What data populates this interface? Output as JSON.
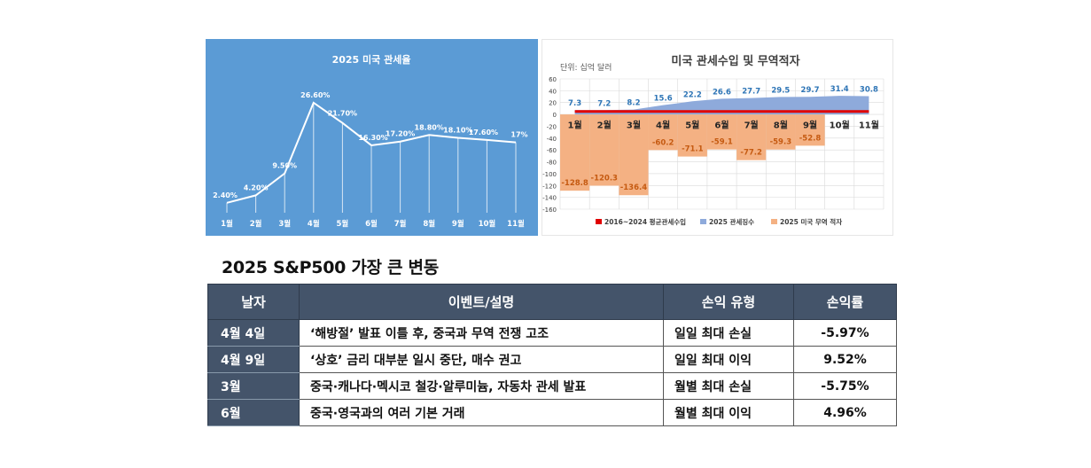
{
  "chart_data": [
    {
      "type": "line",
      "title": "2025 미국 관세율",
      "categories": [
        "1월",
        "2월",
        "3월",
        "4월",
        "5월",
        "6월",
        "7월",
        "8월",
        "9월",
        "10월",
        "11월"
      ],
      "values": [
        2.4,
        4.2,
        9.5,
        26.6,
        21.7,
        16.3,
        17.2,
        18.8,
        18.1,
        17.6,
        17
      ],
      "data_labels": [
        "2.40%",
        "4.20%",
        "9.50%",
        "26.60%",
        "21.70%",
        "16.30%",
        "17.20%",
        "18.80%",
        "18.10%",
        "17.60%",
        "17%"
      ],
      "ylim": [
        0,
        30
      ],
      "grid": false,
      "colors": {
        "background": "#5b9bd5",
        "line": "#ffffff"
      }
    },
    {
      "type": "bar",
      "title": "미국 관세수입 및 무역적자",
      "unit_label": "단위: 십억 달러",
      "categories": [
        "1월",
        "2월",
        "3월",
        "4월",
        "5월",
        "6월",
        "7월",
        "8월",
        "9월",
        "10월",
        "11월"
      ],
      "yticks": [
        "60",
        "40",
        "20",
        "0",
        "-20",
        "-40",
        "-60",
        "-80",
        "-100",
        "-120",
        "-140",
        "-160"
      ],
      "ylim": [
        -160,
        60
      ],
      "grid": true,
      "legend_position": "bottom",
      "series": [
        {
          "name": "2016~2024 평균관세수입",
          "type": "line",
          "color": "#e00000",
          "values": [
            5,
            5,
            5,
            5,
            5,
            5,
            5,
            5,
            5,
            5,
            5
          ]
        },
        {
          "name": "2025 관세징수",
          "type": "area",
          "color": "#8eaadb",
          "label_color": "#2e75b6",
          "values": [
            7.3,
            7.2,
            8.2,
            15.6,
            22.2,
            26.6,
            27.7,
            29.5,
            29.7,
            31.4,
            30.8
          ],
          "labels": [
            "7.3",
            "7.2",
            "8.2",
            "15.6",
            "22.2",
            "26.6",
            "27.7",
            "29.5",
            "29.7",
            "31.4",
            "30.8"
          ]
        },
        {
          "name": "2025 미국 무역 적자",
          "type": "bar",
          "color": "#f4b183",
          "label_color": "#c55a11",
          "values": [
            -128.8,
            -120.3,
            -136.4,
            -60.2,
            -71.1,
            -59.1,
            -77.2,
            -59.3,
            -52.8,
            null,
            null
          ],
          "labels": [
            "-128.8",
            "-120.3",
            "-136.4",
            "-60.2",
            "-71.1",
            "-59.1",
            "-77.2",
            "-59.3",
            "-52.8",
            "",
            ""
          ]
        }
      ]
    }
  ],
  "table": {
    "title": "2025 S&P500 가장 큰 변동",
    "headers": {
      "date": "날자",
      "event": "이벤트/설명",
      "type": "손익 유형",
      "rate": "손익률"
    },
    "rows": [
      {
        "date": "4월 4일",
        "event": "‘해방절’ 발표 이틀 후, 중국과 무역 전쟁 고조",
        "type": "일일 최대 손실",
        "rate": "-5.97%"
      },
      {
        "date": "4월 9일",
        "event": "‘상호’ 금리 대부분 일시 중단, 매수 권고",
        "type": "일일 최대 이익",
        "rate": "9.52%"
      },
      {
        "date": "3월",
        "event": "중국·캐나다·멕시코 철강·알루미늄, 자동차 관세 발표",
        "type": "월별 최대 손실",
        "rate": "-5.75%"
      },
      {
        "date": "6월",
        "event": "중국·영국과의 여러 기본 거래",
        "type": "월별 최대 이익",
        "rate": "4.96%"
      }
    ]
  }
}
